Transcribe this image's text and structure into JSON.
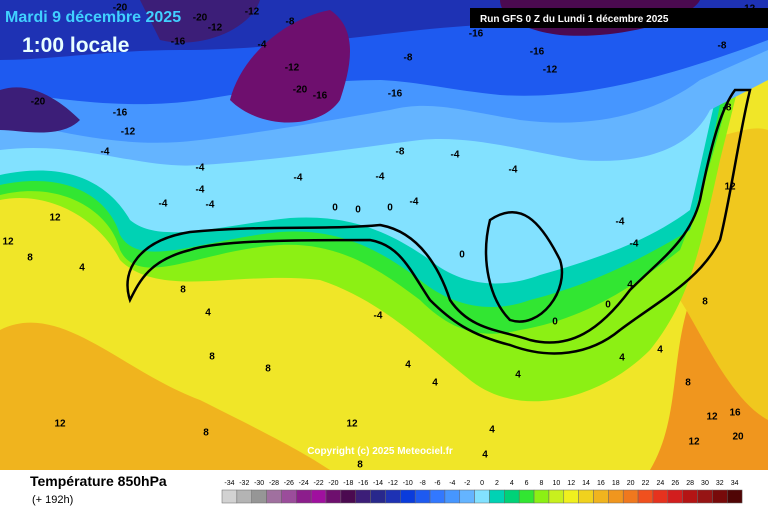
{
  "header": {
    "date": "Mardi 9 décembre 2025",
    "time": "1:00 locale",
    "run": "Run GFS 0 Z du Lundi 1 décembre 2025"
  },
  "copyright": "Copyright (c) 2025 Meteociel.fr",
  "footer": {
    "title": "Température 850hPa",
    "lead": "(+ 192h)"
  },
  "legend": {
    "ticks": [
      -34,
      -32,
      -30,
      -28,
      -26,
      -24,
      -22,
      -20,
      -18,
      -16,
      -14,
      -12,
      -10,
      -8,
      -6,
      -4,
      -2,
      0,
      2,
      4,
      6,
      8,
      10,
      12,
      14,
      16,
      18,
      20,
      22,
      24,
      26,
      28,
      30,
      32,
      34
    ],
    "colors": [
      "#d2d2d2",
      "#b4b4b4",
      "#969696",
      "#a0709f",
      "#9b4d9b",
      "#8c1e8c",
      "#a0109f",
      "#6e0f6e",
      "#4b0a50",
      "#3c1e78",
      "#28288c",
      "#1e32b4",
      "#0a3cdc",
      "#1e5af0",
      "#3278ff",
      "#4696ff",
      "#64b4ff",
      "#82e1ff",
      "#00d2b4",
      "#00d278",
      "#32e632",
      "#8cf014",
      "#c8f01e",
      "#f0f01e",
      "#f0d21e",
      "#f0b41e",
      "#f0961e",
      "#f0781e",
      "#f0501e",
      "#e6321e",
      "#d21e1e",
      "#b41414",
      "#961414",
      "#780a0a",
      "#500505"
    ]
  },
  "map": {
    "labels": [
      -20,
      -20,
      -12,
      -8,
      -16,
      -12,
      -4,
      -20,
      -16,
      -12,
      -16,
      -8,
      -16,
      -16,
      -12,
      -8,
      -12,
      -12,
      -16,
      -20,
      -4,
      -4,
      -8,
      -4,
      -4,
      -4,
      -4,
      -4,
      -4,
      -4,
      0,
      0,
      0,
      -4,
      12,
      12,
      8,
      4,
      8,
      4,
      8,
      8,
      12,
      8,
      12,
      0,
      -4,
      4,
      4,
      4,
      4,
      8,
      0,
      4,
      8,
      4,
      4,
      8,
      12,
      12,
      16,
      20,
      12,
      -4,
      -4,
      0,
      4,
      -8
    ]
  }
}
